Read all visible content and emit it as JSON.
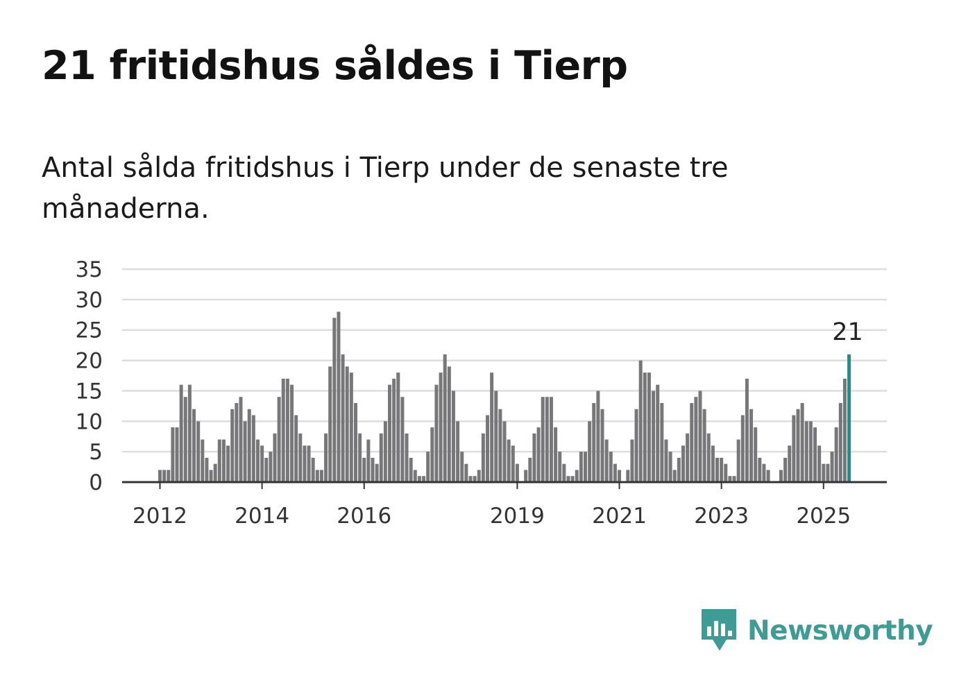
{
  "header": {
    "title": "21 fritidshus såldes i Tierp",
    "subtitle": "Antal sålda fritidshus i Tierp under de senaste tre månaderna."
  },
  "brand": {
    "name": "Newsworthy",
    "color": "#3f9b95"
  },
  "colors": {
    "bars": "#777679",
    "highlight": "#17938b",
    "grid": "#dddddd",
    "axis": "#333333"
  },
  "chart_data": {
    "type": "bar",
    "title": "",
    "xlabel": "",
    "ylabel": "",
    "ylim": [
      0,
      35
    ],
    "yticks": [
      0,
      5,
      10,
      15,
      20,
      25,
      30,
      35
    ],
    "xtick_labels": [
      {
        "label": "2012",
        "index": 0
      },
      {
        "label": "2014",
        "index": 24
      },
      {
        "label": "2016",
        "index": 48
      },
      {
        "label": "2019",
        "index": 84
      },
      {
        "label": "2021",
        "index": 108
      },
      {
        "label": "2023",
        "index": 132
      },
      {
        "label": "2025",
        "index": 156
      }
    ],
    "first_period": "2012-01",
    "series": [
      {
        "values": [
          2,
          2,
          2,
          9,
          9,
          16,
          14,
          16,
          12,
          10,
          7,
          4,
          2,
          3,
          7,
          7,
          6,
          12,
          13,
          14,
          10,
          12,
          11,
          7,
          6,
          4,
          5,
          8,
          14,
          17,
          17,
          16,
          11,
          8,
          6,
          6,
          4,
          2,
          2,
          8,
          19,
          27,
          28,
          21,
          19,
          18,
          13,
          8,
          4,
          7,
          4,
          3,
          8,
          10,
          16,
          17,
          18,
          14,
          8,
          4,
          2,
          1,
          1,
          5,
          9,
          16,
          18,
          21,
          19,
          15,
          10,
          5,
          3,
          1,
          1,
          2,
          8,
          11,
          18,
          15,
          12,
          10,
          7,
          6,
          3,
          0,
          2,
          4,
          8,
          9,
          14,
          14,
          14,
          9,
          5,
          3,
          1,
          1,
          2,
          5,
          5,
          10,
          13,
          15,
          12,
          7,
          5,
          3,
          2,
          0,
          2,
          7,
          12,
          20,
          18,
          18,
          15,
          16,
          13,
          7,
          5,
          2,
          4,
          6,
          8,
          13,
          14,
          15,
          12,
          8,
          6,
          4,
          4,
          3,
          1,
          1,
          7,
          11,
          17,
          12,
          9,
          4,
          3,
          2,
          0,
          0,
          2,
          4,
          6,
          11,
          12,
          13,
          10,
          10,
          9,
          6,
          3,
          3,
          5,
          9,
          13,
          17,
          21
        ]
      }
    ],
    "highlight": {
      "index": 162,
      "value": 21,
      "label": "21"
    }
  }
}
